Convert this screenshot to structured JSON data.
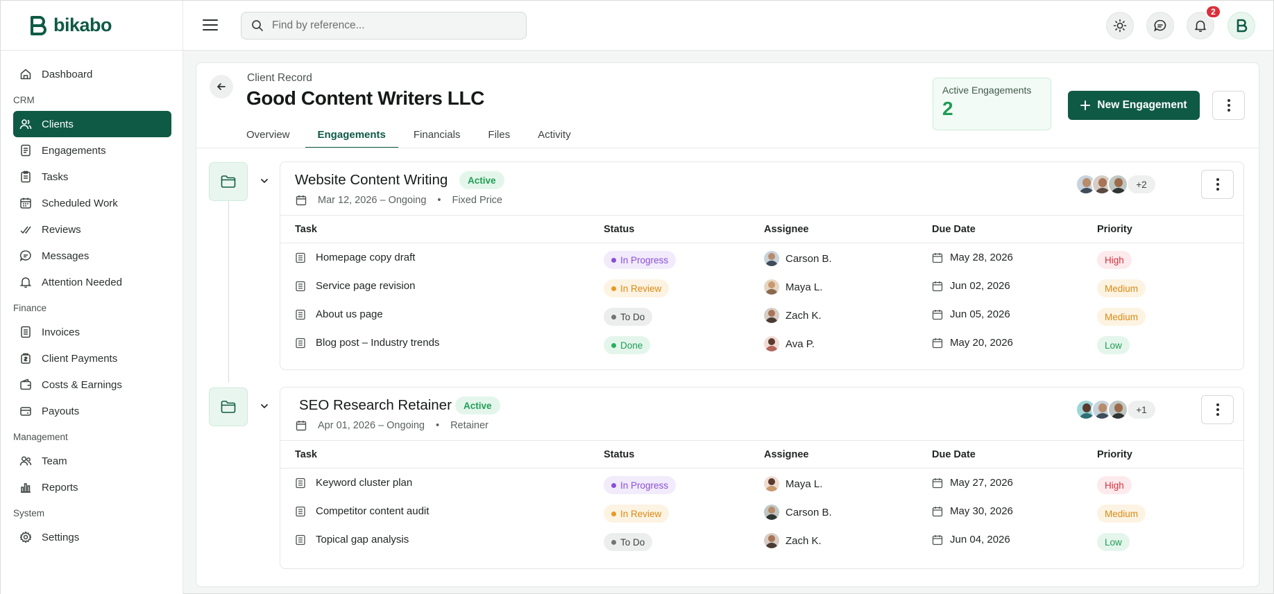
{
  "app": {
    "logo_text": "bikabo"
  },
  "search": {
    "placeholder": "Find by reference..."
  },
  "notifications": {
    "count": "2"
  },
  "sidebar": {
    "items": [
      {
        "label": "Dashboard",
        "icon": "home-icon"
      },
      {
        "section": "CRM"
      },
      {
        "label": "Clients",
        "icon": "users-icon",
        "active": true
      },
      {
        "label": "Engagements",
        "icon": "document-icon"
      },
      {
        "label": "Tasks",
        "icon": "clipboard-icon"
      },
      {
        "label": "Scheduled Work",
        "icon": "calendar-icon"
      },
      {
        "label": "Reviews",
        "icon": "check-double-icon"
      },
      {
        "label": "Messages",
        "icon": "chat-icon"
      },
      {
        "label": "Attention Needed",
        "icon": "bell-icon"
      },
      {
        "section": "Finance"
      },
      {
        "label": "Invoices",
        "icon": "invoice-icon"
      },
      {
        "label": "Client Payments",
        "icon": "payment-icon"
      },
      {
        "label": "Costs & Earnings",
        "icon": "wallet-icon"
      },
      {
        "label": "Payouts",
        "icon": "payout-icon"
      },
      {
        "section": "Management"
      },
      {
        "label": "Team",
        "icon": "team-icon"
      },
      {
        "label": "Reports",
        "icon": "bar-chart-icon"
      },
      {
        "section": "System"
      },
      {
        "label": "Settings",
        "icon": "gear-icon"
      }
    ]
  },
  "page": {
    "eyebrow": "Client Record",
    "title": "Good Content Writers LLC",
    "tabs": [
      "Overview",
      "Engagements",
      "Financials",
      "Files",
      "Activity"
    ],
    "active_tab": "Engagements",
    "stat": {
      "label": "Active Engagements",
      "value": "2"
    },
    "new_button": "New Engagement"
  },
  "table_headers": {
    "task": "Task",
    "status": "Status",
    "assignee": "Assignee",
    "due": "Due Date",
    "priority": "Priority"
  },
  "engagements": [
    {
      "title": "Website Content Writing",
      "status": "Active",
      "dates": "Mar 12, 2026 – Ongoing",
      "pricing": "Fixed Price",
      "extra_members": "+2",
      "tasks": [
        {
          "name": "Homepage copy draft",
          "status": "In Progress",
          "assignee": "Carson B.",
          "due": "May 28, 2026",
          "priority": "High"
        },
        {
          "name": "Service page revision",
          "status": "In Review",
          "assignee": "Maya L.",
          "due": "Jun 02, 2026",
          "priority": "Medium"
        },
        {
          "name": "About us page",
          "status": "To Do",
          "assignee": "Zach K.",
          "due": "Jun 05, 2026",
          "priority": "Medium"
        },
        {
          "name": "Blog post – Industry trends",
          "status": "Done",
          "assignee": "Ava P.",
          "due": "May 20, 2026",
          "priority": "Low"
        }
      ]
    },
    {
      "title": "SEO Research Retainer",
      "status": "Active",
      "dates": "Apr 01, 2026 – Ongoing",
      "pricing": "Retainer",
      "extra_members": "+1",
      "tasks": [
        {
          "name": "Keyword cluster plan",
          "status": "In Progress",
          "assignee": "Maya L.",
          "due": "May 27, 2026",
          "priority": "High"
        },
        {
          "name": "Competitor content audit",
          "status": "In Review",
          "assignee": "Carson B.",
          "due": "May 30, 2026",
          "priority": "Medium"
        },
        {
          "name": "Topical gap analysis",
          "status": "To Do",
          "assignee": "Zach K.",
          "due": "Jun 04, 2026",
          "priority": "Low"
        }
      ]
    }
  ],
  "colors": {
    "brand": "#0f5a45",
    "active_green": "#1f9d55",
    "in_progress": "#8a4fd6",
    "in_review": "#d98a16",
    "high": "#d6323f",
    "badge_red": "#dc2f3b"
  }
}
